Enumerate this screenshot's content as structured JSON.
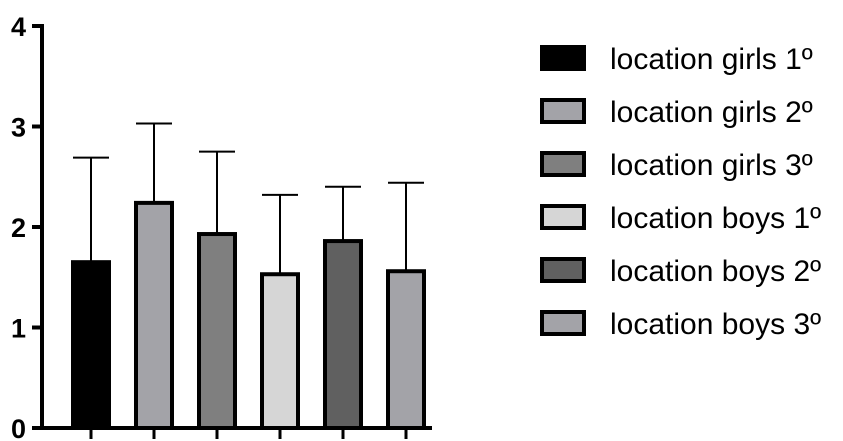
{
  "chart_data": {
    "type": "bar",
    "categories": [
      "location girls 1º",
      "location girls 2º",
      "location girls 3º",
      "location boys 1º",
      "location boys 2º",
      "location boys 3º"
    ],
    "series": [
      {
        "values": [
          1.65,
          2.24,
          1.93,
          1.53,
          1.86,
          1.56
        ],
        "error": [
          1.04,
          0.79,
          0.82,
          0.79,
          0.54,
          0.88
        ],
        "colors": [
          "#000000",
          "#a3a3a8",
          "#7f7f7f",
          "#d6d6d6",
          "#606060",
          "#a3a3a8"
        ]
      }
    ],
    "ylim": [
      0,
      4
    ],
    "yticks": [
      "0",
      "1",
      "2",
      "3",
      "4"
    ],
    "error_bars": "upper",
    "legend_position": "right",
    "grid": false
  }
}
